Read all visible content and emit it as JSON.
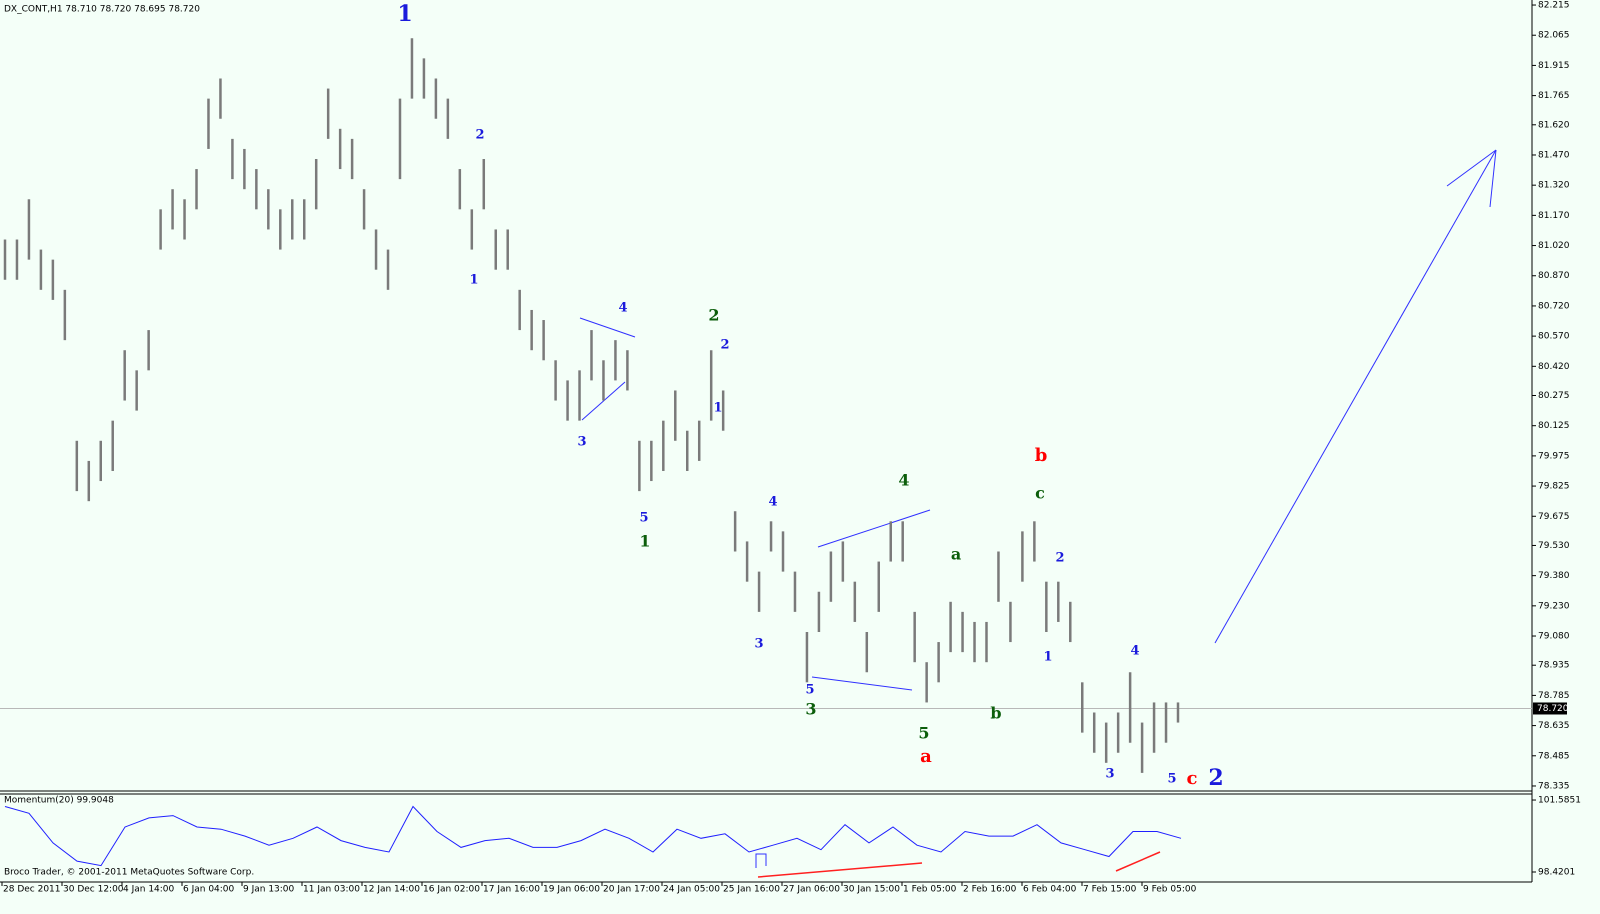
{
  "chart_data": {
    "type": "ohlc",
    "title": "DX_CONT,H1  78.710 78.720 78.695 78.720",
    "color": "#7a7a7a",
    "high": [
      81.05,
      81.05,
      81.25,
      81.0,
      80.95,
      80.8,
      80.05,
      79.95,
      80.05,
      80.15,
      80.5,
      80.4,
      80.6,
      81.2,
      81.3,
      81.25,
      81.4,
      81.75,
      81.85,
      81.55,
      81.5,
      81.4,
      81.3,
      81.2,
      81.25,
      81.25,
      81.45,
      81.8,
      81.6,
      81.55,
      81.3,
      81.1,
      81.0,
      81.75,
      82.05,
      81.95,
      81.85,
      81.75,
      81.4,
      81.2,
      81.45,
      81.1,
      81.1,
      80.8,
      80.7,
      80.65,
      80.45,
      80.35,
      80.4,
      80.6,
      80.45,
      80.55,
      80.5,
      80.05,
      80.05,
      80.15,
      80.3,
      80.1,
      80.15,
      80.5,
      80.3,
      79.7,
      79.55,
      79.4,
      79.65,
      79.6,
      79.4,
      79.1,
      79.3,
      79.5,
      79.55,
      79.35,
      79.1,
      79.45,
      79.65,
      79.65,
      79.2,
      78.95,
      79.05,
      79.25,
      79.2,
      79.15,
      79.15,
      79.5,
      79.25,
      79.6,
      79.65,
      79.35,
      79.35,
      79.25,
      78.85,
      78.7,
      78.65,
      78.7,
      78.9,
      78.65,
      78.75,
      78.75,
      78.75
    ],
    "low": [
      80.85,
      80.85,
      80.95,
      80.8,
      80.75,
      80.55,
      79.8,
      79.75,
      79.85,
      79.9,
      80.25,
      80.2,
      80.4,
      81.0,
      81.1,
      81.05,
      81.2,
      81.5,
      81.65,
      81.35,
      81.3,
      81.2,
      81.1,
      81.0,
      81.05,
      81.05,
      81.2,
      81.55,
      81.4,
      81.35,
      81.1,
      80.9,
      80.8,
      81.35,
      81.75,
      81.75,
      81.65,
      81.55,
      81.2,
      81.0,
      81.2,
      80.9,
      80.9,
      80.6,
      80.5,
      80.45,
      80.25,
      80.15,
      80.15,
      80.35,
      80.25,
      80.35,
      80.3,
      79.8,
      79.85,
      79.9,
      80.05,
      79.9,
      79.95,
      80.15,
      80.1,
      79.5,
      79.35,
      79.2,
      79.5,
      79.4,
      79.2,
      78.85,
      79.1,
      79.25,
      79.35,
      79.15,
      78.9,
      79.2,
      79.45,
      79.45,
      78.95,
      78.75,
      78.85,
      79.0,
      79.0,
      78.95,
      78.95,
      79.25,
      79.05,
      79.35,
      79.45,
      79.1,
      79.15,
      79.05,
      78.6,
      78.5,
      78.45,
      78.5,
      78.55,
      78.4,
      78.5,
      78.55,
      78.65
    ],
    "ylim": [
      78.315,
      82.24
    ],
    "yticks": [
      82.215,
      82.065,
      81.915,
      81.765,
      {
        "value": 81.62,
        "label": "81.620"
      },
      {
        "value": 81.47,
        "label": "81.470"
      },
      {
        "value": 81.32,
        "label": "81.320"
      },
      {
        "value": 81.17,
        "label": "81.170"
      },
      {
        "value": 81.02,
        "label": "81.020"
      },
      {
        "value": 80.87,
        "label": "80.870"
      },
      {
        "value": 80.72,
        "label": "80.720"
      },
      {
        "value": 80.57,
        "label": "80.570"
      },
      {
        "value": 80.42,
        "label": "80.420"
      },
      80.275,
      80.125,
      79.975,
      79.825,
      79.675,
      {
        "value": 79.53,
        "label": "79.530"
      },
      {
        "value": 79.38,
        "label": "79.380"
      },
      {
        "value": 79.23,
        "label": "79.230"
      },
      {
        "value": 79.08,
        "label": "79.080"
      },
      78.935,
      78.785,
      78.635,
      78.485,
      78.335
    ],
    "current_price": {
      "value": 78.72,
      "label": "78.720"
    },
    "x_labels": [
      "28 Dec 2011",
      "30 Dec 12:00",
      "4 Jan 14:00",
      "6 Jan 04:00",
      "9 Jan 13:00",
      "11 Jan 03:00",
      "12 Jan 14:00",
      "16 Jan 02:00",
      "17 Jan 16:00",
      "19 Jan 06:00",
      "20 Jan 17:00",
      "24 Jan 05:00",
      "25 Jan 16:00",
      "27 Jan 06:00",
      "30 Jan 15:00",
      "1 Feb 05:00",
      "2 Feb 16:00",
      "6 Feb 04:00",
      "7 Feb 15:00",
      "9 Feb 05:00"
    ],
    "momentum": {
      "title": "Momentum(20) 99.9048",
      "color": "#2020ff",
      "values": [
        101.3,
        101.0,
        99.7,
        98.9,
        98.7,
        100.4,
        100.8,
        100.9,
        100.4,
        100.3,
        100.0,
        99.6,
        99.9,
        100.4,
        99.8,
        99.5,
        99.3,
        101.3,
        100.2,
        99.5,
        99.8,
        99.9,
        99.5,
        99.5,
        99.8,
        100.3,
        99.9,
        99.3,
        100.3,
        99.9,
        100.1,
        99.3,
        99.6,
        99.9,
        99.4,
        100.5,
        99.7,
        100.4,
        99.6,
        99.3,
        100.2,
        100.0,
        100.0,
        100.5,
        99.7,
        99.4,
        99.1,
        100.2,
        100.2,
        99.9
      ],
      "ylim": [
        97.98,
        101.85
      ],
      "yticks": [
        101.5851,
        98.4201
      ]
    },
    "annotations": [
      {
        "text": "1",
        "color": "#1a1adc"
      },
      {
        "text": "2",
        "color": "#1a1adc"
      },
      {
        "text": "1",
        "color": "#1a1adc"
      },
      {
        "text": "4",
        "color": "#1a1adc"
      },
      {
        "text": "3",
        "color": "#1a1adc"
      },
      {
        "text": "5",
        "color": "#1a1adc"
      },
      {
        "text": "2",
        "color": "#1a1adc"
      },
      {
        "text": "1",
        "color": "#1a1adc"
      },
      {
        "text": "4",
        "color": "#1a1adc"
      },
      {
        "text": "3",
        "color": "#1a1adc"
      },
      {
        "text": "5",
        "color": "#1a1adc"
      },
      {
        "text": "2",
        "color": "#1a1adc"
      },
      {
        "text": "1",
        "color": "#1a1adc"
      },
      {
        "text": "4",
        "color": "#1a1adc"
      },
      {
        "text": "3",
        "color": "#1a1adc"
      },
      {
        "text": "5",
        "color": "#1a1adc"
      },
      {
        "text": "2",
        "color": "#1a1adc"
      },
      {
        "text": "1",
        "color": "#0b5e0b"
      },
      {
        "text": "2",
        "color": "#0b5e0b"
      },
      {
        "text": "4",
        "color": "#0b5e0b"
      },
      {
        "text": "3",
        "color": "#0b5e0b"
      },
      {
        "text": "5",
        "color": "#0b5e0b"
      },
      {
        "text": "a",
        "color": "#0b5e0b"
      },
      {
        "text": "b",
        "color": "#0b5e0b"
      },
      {
        "text": "c",
        "color": "#0b5e0b"
      },
      {
        "text": "b",
        "color": "#ff0000"
      },
      {
        "text": "a",
        "color": "#ff0000"
      },
      {
        "text": "c",
        "color": "#ff0000"
      }
    ],
    "footer": "Broco Trader, © 2001-2011 MetaQuotes Software Corp."
  }
}
